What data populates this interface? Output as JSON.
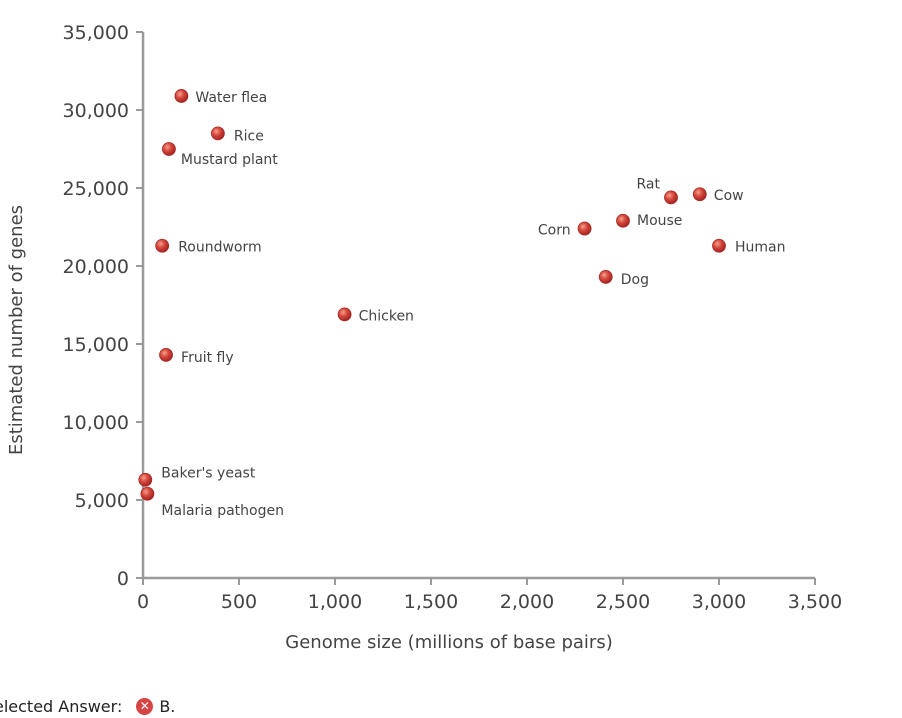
{
  "chart_data": {
    "type": "scatter",
    "title": "",
    "xlabel": "Genome size (millions of base pairs)",
    "ylabel": "Estimated number of genes",
    "xlim": [
      0,
      3500
    ],
    "ylim": [
      0,
      35000
    ],
    "x_ticks": [
      0,
      500,
      1000,
      1500,
      2000,
      2500,
      3000,
      3500
    ],
    "x_tick_labels": [
      "0",
      "500",
      "1,000",
      "1,500",
      "2,000",
      "2,500",
      "3,000",
      "3,500"
    ],
    "y_ticks": [
      0,
      5000,
      10000,
      15000,
      20000,
      25000,
      30000,
      35000
    ],
    "y_tick_labels": [
      "0",
      "5,000",
      "10,000",
      "15,000",
      "20,000",
      "25,000",
      "30,000",
      "35,000"
    ],
    "grid": false,
    "marker_color": "#c8322d",
    "points": [
      {
        "label": "Water flea",
        "x": 200,
        "y": 30900
      },
      {
        "label": "Rice",
        "x": 390,
        "y": 28500
      },
      {
        "label": "Mustard plant",
        "x": 135,
        "y": 27500
      },
      {
        "label": "Roundworm",
        "x": 100,
        "y": 21300
      },
      {
        "label": "Fruit fly",
        "x": 120,
        "y": 14300
      },
      {
        "label": "Baker's yeast",
        "x": 12,
        "y": 6300
      },
      {
        "label": "Malaria pathogen",
        "x": 23,
        "y": 5400
      },
      {
        "label": "Chicken",
        "x": 1050,
        "y": 16900
      },
      {
        "label": "Corn",
        "x": 2300,
        "y": 22400
      },
      {
        "label": "Mouse",
        "x": 2500,
        "y": 22900
      },
      {
        "label": "Rat",
        "x": 2750,
        "y": 24400
      },
      {
        "label": "Cow",
        "x": 2900,
        "y": 24600
      },
      {
        "label": "Human",
        "x": 3000,
        "y": 21300
      },
      {
        "label": "Dog",
        "x": 2410,
        "y": 19300
      }
    ]
  },
  "answer": {
    "label": "elected Answer:",
    "icon": "x-circle-icon",
    "icon_color": "#d64545",
    "value": "B."
  }
}
